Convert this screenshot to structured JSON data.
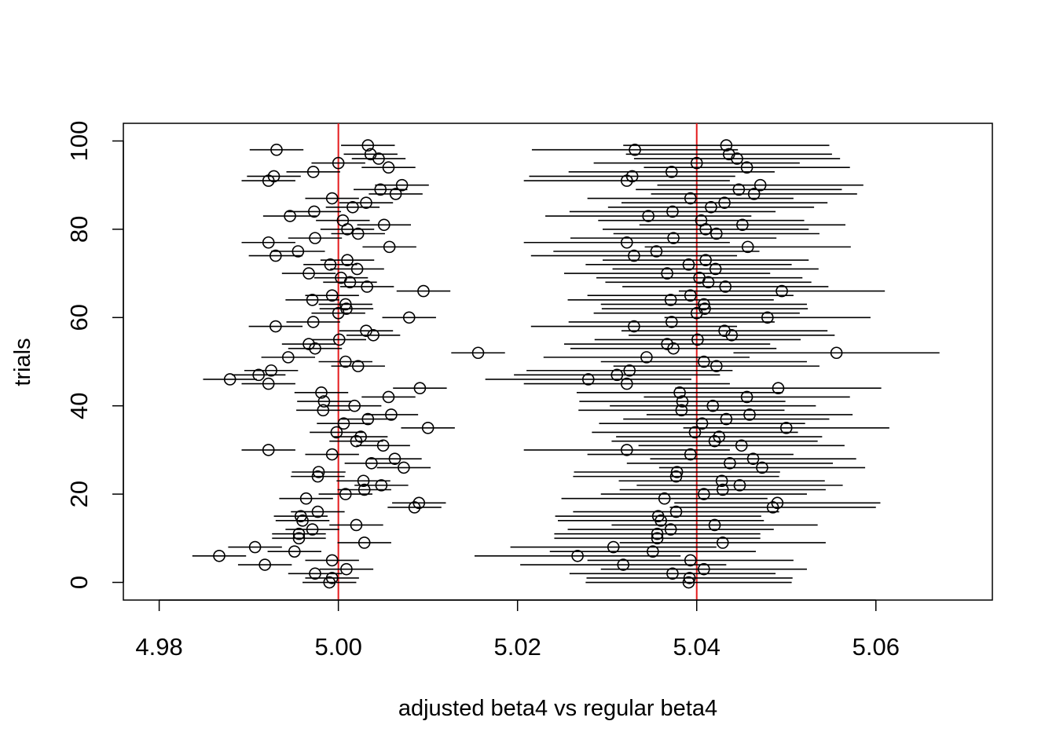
{
  "chart_data": {
    "type": "scatter",
    "title": "",
    "xlabel": "adjusted beta4 vs regular beta4",
    "ylabel": "trials",
    "xlim": [
      4.976,
      5.073
    ],
    "ylim": [
      -4,
      104
    ],
    "x_ticks": [
      {
        "value": 4.98,
        "label": "4.98"
      },
      {
        "value": 5.0,
        "label": "5.00"
      },
      {
        "value": 5.02,
        "label": "5.02"
      },
      {
        "value": 5.04,
        "label": "5.04"
      },
      {
        "value": 5.06,
        "label": "5.06"
      }
    ],
    "y_ticks": [
      {
        "value": 0,
        "label": "0"
      },
      {
        "value": 20,
        "label": "20"
      },
      {
        "value": 40,
        "label": "40"
      },
      {
        "value": 60,
        "label": "60"
      },
      {
        "value": 80,
        "label": "80"
      },
      {
        "value": 100,
        "label": "100"
      }
    ],
    "reference_lines": [
      {
        "axis": "x",
        "value": 5.0,
        "color": "#e41a1c"
      },
      {
        "axis": "x",
        "value": 5.04,
        "color": "#e41a1c"
      }
    ],
    "grid": false,
    "legend": "none",
    "marker": "open-circle",
    "series": [
      {
        "interval_halfwidth": 0.003,
        "points": [
          {
            "y": 0,
            "x": 4.999
          },
          {
            "y": 1,
            "x": 4.9993
          },
          {
            "y": 2,
            "x": 4.9974
          },
          {
            "y": 3,
            "x": 5.0009
          },
          {
            "y": 4,
            "x": 4.9918
          },
          {
            "y": 5,
            "x": 4.9993
          },
          {
            "y": 6,
            "x": 4.9867
          },
          {
            "y": 7,
            "x": 4.9951
          },
          {
            "y": 8,
            "x": 4.9907
          },
          {
            "y": 9,
            "x": 5.0029
          },
          {
            "y": 10,
            "x": 4.9956
          },
          {
            "y": 11,
            "x": 4.9956
          },
          {
            "y": 12,
            "x": 4.9971
          },
          {
            "y": 13,
            "x": 5.002
          },
          {
            "y": 14,
            "x": 4.996
          },
          {
            "y": 15,
            "x": 4.9958
          },
          {
            "y": 16,
            "x": 4.9977
          },
          {
            "y": 17,
            "x": 5.0085
          },
          {
            "y": 18,
            "x": 5.009
          },
          {
            "y": 19,
            "x": 4.9964
          },
          {
            "y": 20,
            "x": 5.0008
          },
          {
            "y": 21,
            "x": 5.0029
          },
          {
            "y": 22,
            "x": 5.0048
          },
          {
            "y": 23,
            "x": 5.0028
          },
          {
            "y": 24,
            "x": 4.9977
          },
          {
            "y": 25,
            "x": 4.9978
          },
          {
            "y": 26,
            "x": 5.0073
          },
          {
            "y": 27,
            "x": 5.0037
          },
          {
            "y": 28,
            "x": 5.0063
          },
          {
            "y": 29,
            "x": 4.9993
          },
          {
            "y": 30,
            "x": 4.9922
          },
          {
            "y": 31,
            "x": 5.005
          },
          {
            "y": 32,
            "x": 5.002
          },
          {
            "y": 33,
            "x": 5.0025
          },
          {
            "y": 34,
            "x": 4.9998
          },
          {
            "y": 35,
            "x": 5.01
          },
          {
            "y": 36,
            "x": 5.0006
          },
          {
            "y": 37,
            "x": 5.0033
          },
          {
            "y": 38,
            "x": 5.0059
          },
          {
            "y": 39,
            "x": 4.9983
          },
          {
            "y": 40,
            "x": 5.0018
          },
          {
            "y": 41,
            "x": 4.9984
          },
          {
            "y": 42,
            "x": 5.0056
          },
          {
            "y": 43,
            "x": 4.9981
          },
          {
            "y": 44,
            "x": 5.0091
          },
          {
            "y": 45,
            "x": 4.9922
          },
          {
            "y": 46,
            "x": 4.9879
          },
          {
            "y": 47,
            "x": 4.9911
          },
          {
            "y": 48,
            "x": 4.9925
          },
          {
            "y": 49,
            "x": 5.0022
          },
          {
            "y": 50,
            "x": 5.0008
          },
          {
            "y": 51,
            "x": 4.9944
          },
          {
            "y": 52,
            "x": 5.0156
          },
          {
            "y": 53,
            "x": 4.9974
          },
          {
            "y": 54,
            "x": 4.9967
          },
          {
            "y": 55,
            "x": 5.0001
          },
          {
            "y": 56,
            "x": 5.0039
          },
          {
            "y": 57,
            "x": 5.0031
          },
          {
            "y": 58,
            "x": 4.993
          },
          {
            "y": 59,
            "x": 4.9972
          },
          {
            "y": 60,
            "x": 5.0079
          },
          {
            "y": 61,
            "x": 5.0
          },
          {
            "y": 62,
            "x": 5.0009
          },
          {
            "y": 63,
            "x": 5.0008
          },
          {
            "y": 64,
            "x": 4.9971
          },
          {
            "y": 65,
            "x": 4.9993
          },
          {
            "y": 66,
            "x": 5.0095
          },
          {
            "y": 67,
            "x": 5.0032
          },
          {
            "y": 68,
            "x": 5.0013
          },
          {
            "y": 69,
            "x": 5.0003
          },
          {
            "y": 70,
            "x": 4.9967
          },
          {
            "y": 71,
            "x": 5.0021
          },
          {
            "y": 72,
            "x": 4.9991
          },
          {
            "y": 73,
            "x": 5.001
          },
          {
            "y": 74,
            "x": 4.993
          },
          {
            "y": 75,
            "x": 4.9955
          },
          {
            "y": 76,
            "x": 5.0057
          },
          {
            "y": 77,
            "x": 4.9922
          },
          {
            "y": 78,
            "x": 4.9974
          },
          {
            "y": 79,
            "x": 5.0022
          },
          {
            "y": 80,
            "x": 5.001
          },
          {
            "y": 81,
            "x": 5.0051
          },
          {
            "y": 82,
            "x": 5.0005
          },
          {
            "y": 83,
            "x": 4.9946
          },
          {
            "y": 84,
            "x": 4.9973
          },
          {
            "y": 85,
            "x": 5.0016
          },
          {
            "y": 86,
            "x": 5.0031
          },
          {
            "y": 87,
            "x": 4.9993
          },
          {
            "y": 88,
            "x": 5.0064
          },
          {
            "y": 89,
            "x": 5.0047
          },
          {
            "y": 90,
            "x": 5.0071
          },
          {
            "y": 91,
            "x": 4.9922
          },
          {
            "y": 92,
            "x": 4.9928
          },
          {
            "y": 93,
            "x": 4.9972
          },
          {
            "y": 94,
            "x": 5.0056
          },
          {
            "y": 95,
            "x": 5.0
          },
          {
            "y": 96,
            "x": 5.0045
          },
          {
            "y": 97,
            "x": 5.0036
          },
          {
            "y": 98,
            "x": 4.9931
          },
          {
            "y": 99,
            "x": 5.0033
          }
        ]
      },
      {
        "interval_halfwidth": 0.0115,
        "points": [
          {
            "y": 0,
            "x": 5.0391
          },
          {
            "y": 1,
            "x": 5.0392
          },
          {
            "y": 2,
            "x": 5.0373
          },
          {
            "y": 3,
            "x": 5.0408
          },
          {
            "y": 4,
            "x": 5.0318
          },
          {
            "y": 5,
            "x": 5.0393
          },
          {
            "y": 6,
            "x": 5.0267
          },
          {
            "y": 7,
            "x": 5.0351
          },
          {
            "y": 8,
            "x": 5.0307
          },
          {
            "y": 9,
            "x": 5.0429
          },
          {
            "y": 10,
            "x": 5.0356
          },
          {
            "y": 11,
            "x": 5.0356
          },
          {
            "y": 12,
            "x": 5.0371
          },
          {
            "y": 13,
            "x": 5.042
          },
          {
            "y": 14,
            "x": 5.036
          },
          {
            "y": 15,
            "x": 5.0357
          },
          {
            "y": 16,
            "x": 5.0377
          },
          {
            "y": 17,
            "x": 5.0485
          },
          {
            "y": 18,
            "x": 5.049
          },
          {
            "y": 19,
            "x": 5.0364
          },
          {
            "y": 20,
            "x": 5.0408
          },
          {
            "y": 21,
            "x": 5.0429
          },
          {
            "y": 22,
            "x": 5.0448
          },
          {
            "y": 23,
            "x": 5.0428
          },
          {
            "y": 24,
            "x": 5.0377
          },
          {
            "y": 25,
            "x": 5.0378
          },
          {
            "y": 26,
            "x": 5.0473
          },
          {
            "y": 27,
            "x": 5.0437
          },
          {
            "y": 28,
            "x": 5.0463
          },
          {
            "y": 29,
            "x": 5.0393
          },
          {
            "y": 30,
            "x": 5.0322
          },
          {
            "y": 31,
            "x": 5.045
          },
          {
            "y": 32,
            "x": 5.042
          },
          {
            "y": 33,
            "x": 5.0425
          },
          {
            "y": 34,
            "x": 5.0398
          },
          {
            "y": 35,
            "x": 5.05
          },
          {
            "y": 36,
            "x": 5.0406
          },
          {
            "y": 37,
            "x": 5.0433
          },
          {
            "y": 38,
            "x": 5.0459
          },
          {
            "y": 39,
            "x": 5.0383
          },
          {
            "y": 40,
            "x": 5.0418
          },
          {
            "y": 41,
            "x": 5.0384
          },
          {
            "y": 42,
            "x": 5.0456
          },
          {
            "y": 43,
            "x": 5.0381
          },
          {
            "y": 44,
            "x": 5.0491
          },
          {
            "y": 45,
            "x": 5.0322
          },
          {
            "y": 46,
            "x": 5.0279
          },
          {
            "y": 47,
            "x": 5.0311
          },
          {
            "y": 48,
            "x": 5.0325
          },
          {
            "y": 49,
            "x": 5.0422
          },
          {
            "y": 50,
            "x": 5.0408
          },
          {
            "y": 51,
            "x": 5.0344
          },
          {
            "y": 52,
            "x": 5.0556
          },
          {
            "y": 53,
            "x": 5.0374
          },
          {
            "y": 54,
            "x": 5.0367
          },
          {
            "y": 55,
            "x": 5.0401
          },
          {
            "y": 56,
            "x": 5.0439
          },
          {
            "y": 57,
            "x": 5.0431
          },
          {
            "y": 58,
            "x": 5.033
          },
          {
            "y": 59,
            "x": 5.0372
          },
          {
            "y": 60,
            "x": 5.0479
          },
          {
            "y": 61,
            "x": 5.04
          },
          {
            "y": 62,
            "x": 5.0409
          },
          {
            "y": 63,
            "x": 5.0408
          },
          {
            "y": 64,
            "x": 5.0371
          },
          {
            "y": 65,
            "x": 5.0393
          },
          {
            "y": 66,
            "x": 5.0495
          },
          {
            "y": 67,
            "x": 5.0432
          },
          {
            "y": 68,
            "x": 5.0413
          },
          {
            "y": 69,
            "x": 5.0403
          },
          {
            "y": 70,
            "x": 5.0367
          },
          {
            "y": 71,
            "x": 5.0421
          },
          {
            "y": 72,
            "x": 5.0391
          },
          {
            "y": 73,
            "x": 5.041
          },
          {
            "y": 74,
            "x": 5.033
          },
          {
            "y": 75,
            "x": 5.0355
          },
          {
            "y": 76,
            "x": 5.0457
          },
          {
            "y": 77,
            "x": 5.0322
          },
          {
            "y": 78,
            "x": 5.0374
          },
          {
            "y": 79,
            "x": 5.0422
          },
          {
            "y": 80,
            "x": 5.041
          },
          {
            "y": 81,
            "x": 5.0451
          },
          {
            "y": 82,
            "x": 5.0405
          },
          {
            "y": 83,
            "x": 5.0346
          },
          {
            "y": 84,
            "x": 5.0373
          },
          {
            "y": 85,
            "x": 5.0416
          },
          {
            "y": 86,
            "x": 5.0431
          },
          {
            "y": 87,
            "x": 5.0393
          },
          {
            "y": 88,
            "x": 5.0464
          },
          {
            "y": 89,
            "x": 5.0447
          },
          {
            "y": 90,
            "x": 5.0471
          },
          {
            "y": 91,
            "x": 5.0322
          },
          {
            "y": 92,
            "x": 5.0328
          },
          {
            "y": 93,
            "x": 5.0372
          },
          {
            "y": 94,
            "x": 5.0456
          },
          {
            "y": 95,
            "x": 5.04
          },
          {
            "y": 96,
            "x": 5.0445
          },
          {
            "y": 97,
            "x": 5.0436
          },
          {
            "y": 98,
            "x": 5.0331
          },
          {
            "y": 99,
            "x": 5.0433
          }
        ]
      }
    ]
  }
}
